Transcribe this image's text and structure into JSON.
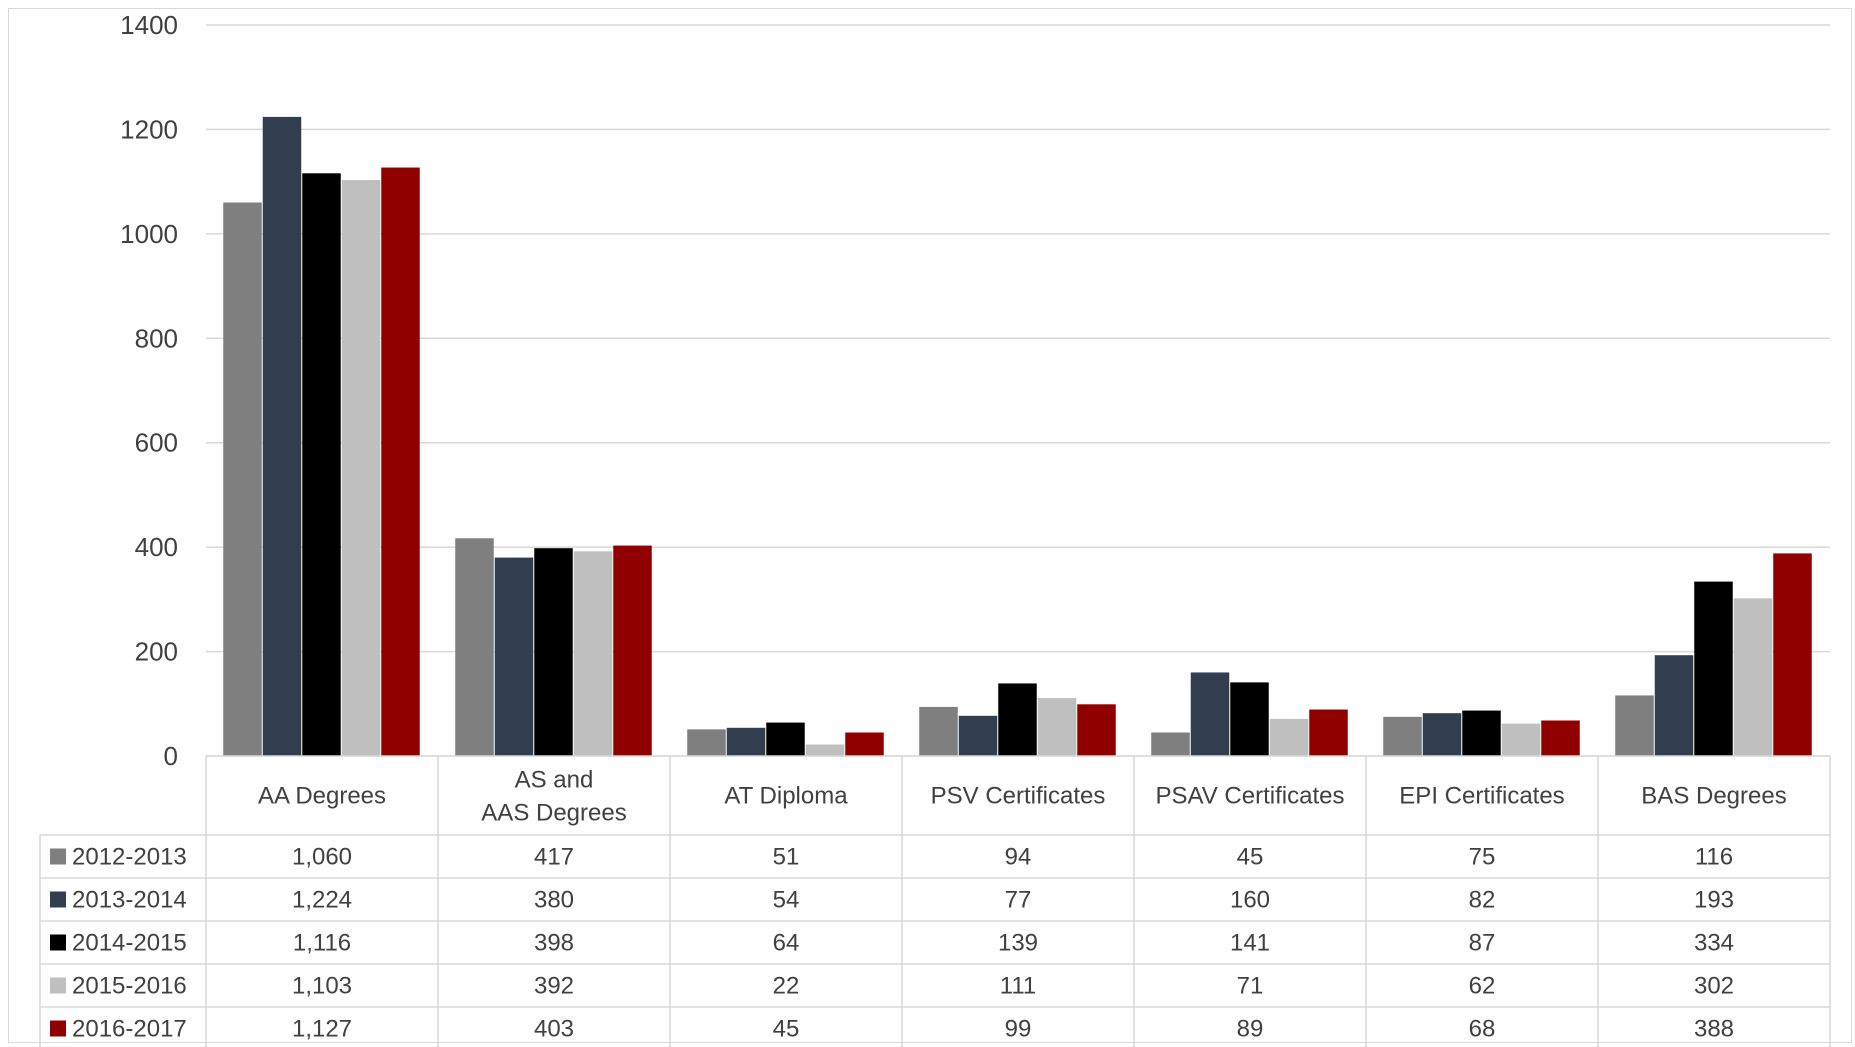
{
  "chart_data": {
    "type": "bar",
    "title": "",
    "xlabel": "",
    "ylabel": "",
    "ylim": [
      0,
      1400
    ],
    "yticks": [
      0,
      200,
      400,
      600,
      800,
      1000,
      1200,
      1400
    ],
    "grid": true,
    "legend": "data-table",
    "categories": [
      "AA Degrees",
      "AS and AAS Degrees",
      "AT Diploma",
      "PSV Certificates",
      "PSAV Certificates",
      "EPI Certificates",
      "BAS Degrees"
    ],
    "series": [
      {
        "name": "2012-2013",
        "color": "#7f7f7f",
        "values": [
          1060,
          417,
          51,
          94,
          45,
          75,
          116
        ],
        "labels": [
          "1,060",
          "417",
          "51",
          "94",
          "45",
          "75",
          "116"
        ]
      },
      {
        "name": "2013-2014",
        "color": "#323e4f",
        "values": [
          1224,
          380,
          54,
          77,
          160,
          82,
          193
        ],
        "labels": [
          "1,224",
          "380",
          "54",
          "77",
          "160",
          "82",
          "193"
        ]
      },
      {
        "name": "2014-2015",
        "color": "#000000",
        "values": [
          1116,
          398,
          64,
          139,
          141,
          87,
          334
        ],
        "labels": [
          "1,116",
          "398",
          "64",
          "139",
          "141",
          "87",
          "334"
        ]
      },
      {
        "name": "2015-2016",
        "color": "#bfbfbf",
        "values": [
          1103,
          392,
          22,
          111,
          71,
          62,
          302
        ],
        "labels": [
          "1,103",
          "392",
          "22",
          "111",
          "71",
          "62",
          "302"
        ]
      },
      {
        "name": "2016-2017",
        "color": "#900000",
        "values": [
          1127,
          403,
          45,
          99,
          89,
          68,
          388
        ],
        "labels": [
          "1,127",
          "403",
          "45",
          "99",
          "89",
          "68",
          "388"
        ]
      }
    ]
  }
}
